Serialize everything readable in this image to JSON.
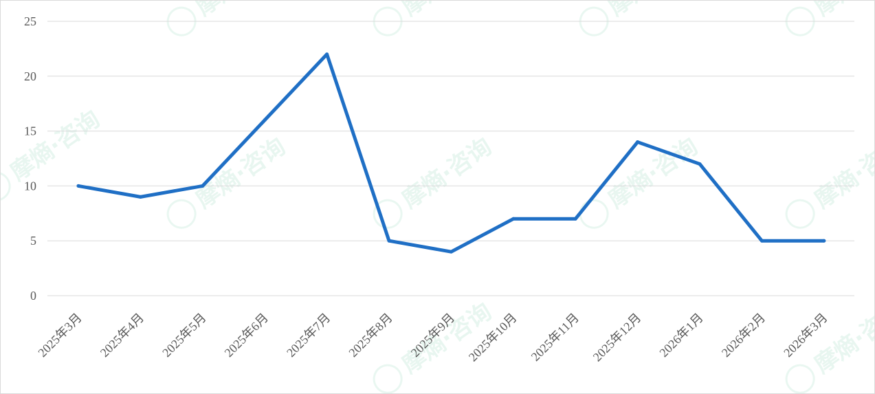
{
  "watermark": {
    "text": "摩熵·咨询"
  },
  "chart_data": {
    "type": "line",
    "title": "",
    "xlabel": "",
    "ylabel": "",
    "categories": [
      "2025年3月",
      "2025年4月",
      "2025年5月",
      "2025年6月",
      "2025年7月",
      "2025年8月",
      "2025年9月",
      "2025年10月",
      "2025年11月",
      "2025年12月",
      "2026年1月",
      "2026年2月",
      "2026年3月"
    ],
    "series": [
      {
        "values": [
          10,
          9,
          10,
          16,
          22,
          5,
          4,
          7,
          7,
          14,
          12,
          5,
          5
        ],
        "color": "#1f6fc5"
      }
    ],
    "ylim": [
      0,
      25
    ],
    "yticks": [
      0,
      5,
      10,
      15,
      20,
      25
    ],
    "grid": true,
    "legend": "none",
    "colors": {
      "line": "#1f6fc5",
      "grid": "#d9d9d9",
      "text": "#595959"
    }
  }
}
